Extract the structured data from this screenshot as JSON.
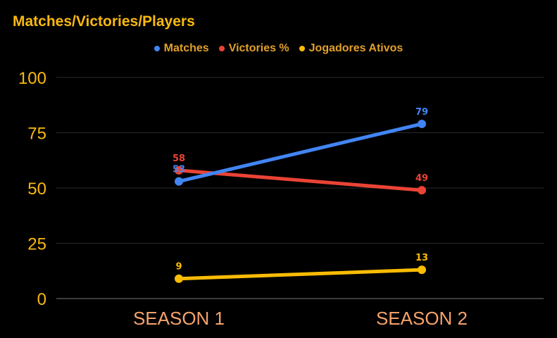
{
  "chart_data": {
    "type": "line",
    "title": "Matches/Victories/Players",
    "categories": [
      "SEASON 1",
      "SEASON 2"
    ],
    "series": [
      {
        "name": "Matches",
        "values": [
          53,
          79
        ],
        "color": "#4285F4"
      },
      {
        "name": "Victories %",
        "values": [
          58,
          49
        ],
        "color": "#EA4335"
      },
      {
        "name": "Jogadores Ativos",
        "values": [
          9,
          13
        ],
        "color": "#FBBC04"
      }
    ],
    "ylim": [
      0,
      100
    ],
    "yticks": [
      0,
      25,
      50,
      75,
      100
    ],
    "grid": true,
    "legend_position": "top",
    "colors": {
      "background": "#000000",
      "title": "#F9B90F",
      "y_tick_labels": "#F9B90F",
      "x_tick_labels": "#F5A26B",
      "legend_text": "#E2A02A",
      "gridline": "#2a2a2a",
      "axis_line": "#777777"
    }
  }
}
